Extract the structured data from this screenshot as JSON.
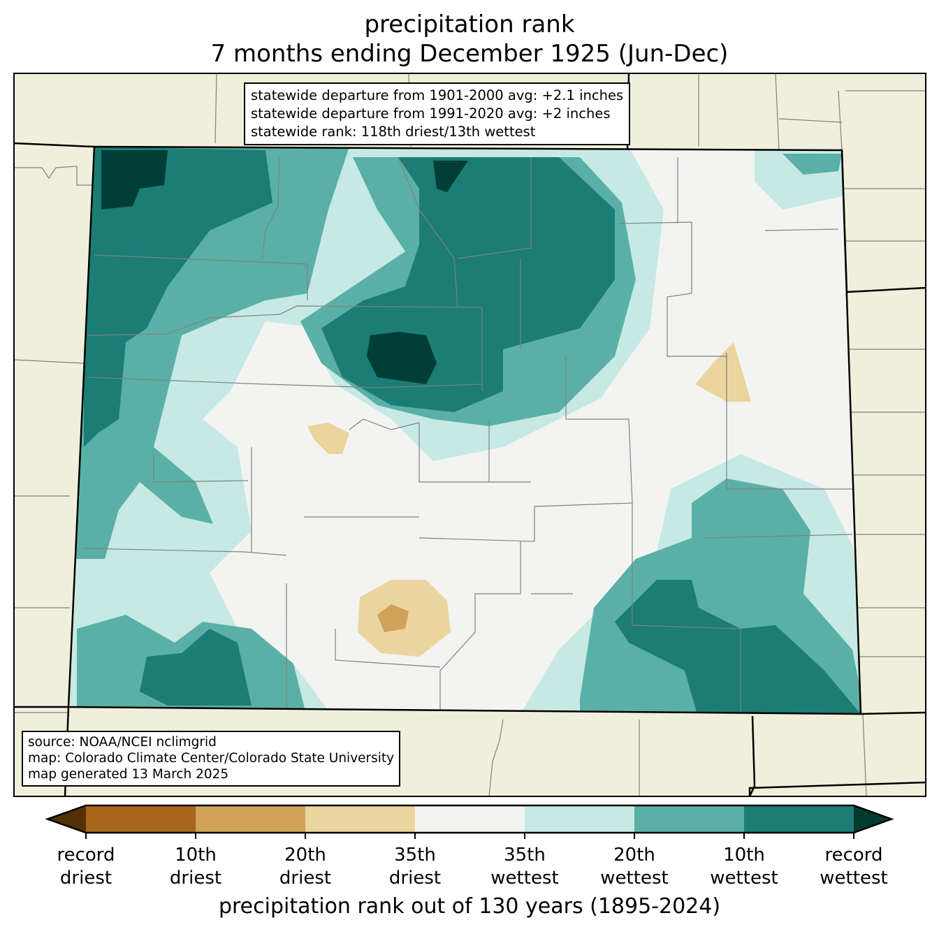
{
  "title": {
    "line1": "precipitation rank",
    "line2": "7 months ending December 1925 (Jun-Dec)"
  },
  "stats_box": {
    "line1": "statewide departure from 1901-2000 avg: +2.1 inches",
    "line2": "statewide departure from 1991-2020 avg: +2 inches",
    "line3": "statewide rank: 118th driest/13th wettest"
  },
  "source_box": {
    "line1": "source: NOAA/NCEI nclimgrid",
    "line2": "map: Colorado Climate Center/Colorado State University",
    "line3": "map generated 13 March 2025"
  },
  "colorbar": {
    "title": "precipitation rank out of 130 years (1895-2024)",
    "extend_low_color": "#543005",
    "extend_high_color": "#003c30",
    "bins": [
      "#a6671b",
      "#d0a25a",
      "#ebd59f",
      "#f3f4f2",
      "#c7e9e3",
      "#5ab0a7",
      "#1b7d76"
    ],
    "ticks": [
      {
        "l1": "record",
        "l2": "driest"
      },
      {
        "l1": "10th",
        "l2": "driest"
      },
      {
        "l1": "20th",
        "l2": "driest"
      },
      {
        "l1": "35th",
        "l2": "driest"
      },
      {
        "l1": "35th",
        "l2": "wettest"
      },
      {
        "l1": "20th",
        "l2": "wettest"
      },
      {
        "l1": "10th",
        "l2": "wettest"
      },
      {
        "l1": "record",
        "l2": "wettest"
      }
    ]
  },
  "colors": {
    "land": "#efefdc",
    "county_line": "#808080",
    "state_line": "#000000"
  }
}
